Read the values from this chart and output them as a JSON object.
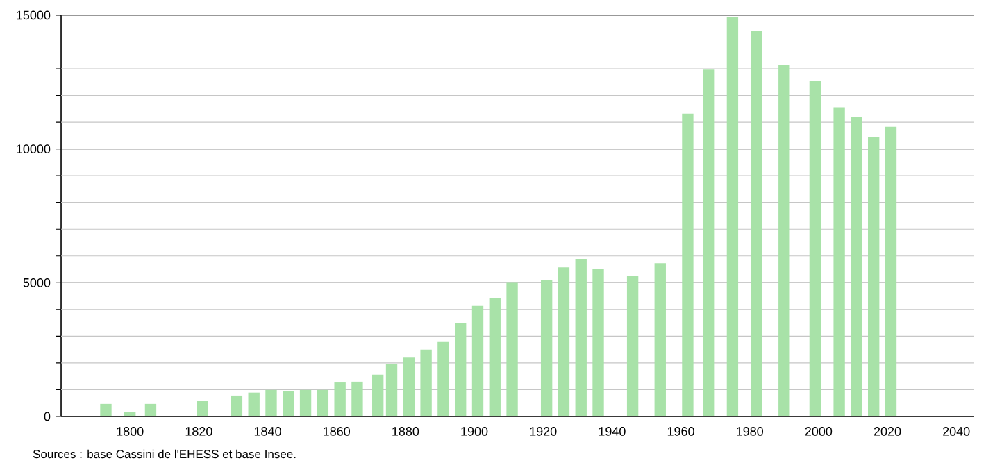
{
  "chart_data": {
    "type": "bar",
    "color": "#a8e2a8",
    "x": [
      1793,
      1800,
      1806,
      1821,
      1831,
      1836,
      1841,
      1846,
      1851,
      1856,
      1861,
      1866,
      1872,
      1876,
      1881,
      1886,
      1891,
      1896,
      1901,
      1906,
      1911,
      1921,
      1926,
      1931,
      1936,
      1946,
      1954,
      1962,
      1968,
      1975,
      1982,
      1990,
      1999,
      2006,
      2011,
      2016,
      2021
    ],
    "values": [
      470,
      170,
      470,
      570,
      780,
      890,
      990,
      950,
      990,
      990,
      1270,
      1300,
      1560,
      1960,
      2200,
      2500,
      2810,
      3500,
      4130,
      4410,
      5020,
      5100,
      5570,
      5890,
      5520,
      5260,
      5730,
      11320,
      12970,
      14930,
      14430,
      13160,
      12550,
      11560,
      11200,
      10430,
      10830
    ],
    "xlim": [
      1780,
      2045
    ],
    "xticks": [
      1800,
      1820,
      1840,
      1860,
      1880,
      1900,
      1920,
      1940,
      1960,
      1980,
      2000,
      2020,
      2040
    ],
    "ylim": [
      0,
      15000
    ],
    "yticks": [
      0,
      {
        "value": 1000,
        "label": null
      },
      {
        "value": 2000,
        "label": null
      },
      {
        "value": 3000,
        "label": null
      },
      {
        "value": 4000,
        "label": null
      },
      5000,
      {
        "value": 6000,
        "label": null
      },
      {
        "value": 7000,
        "label": null
      },
      {
        "value": 8000,
        "label": null
      },
      {
        "value": 9000,
        "label": null
      },
      10000,
      {
        "value": 11000,
        "label": null
      },
      {
        "value": 12000,
        "label": null
      },
      {
        "value": 13000,
        "label": null
      },
      {
        "value": 14000,
        "label": null
      },
      15000
    ],
    "grid": "y",
    "annotations": [
      "Sources : base Cassini de l'EHESS et base Insee."
    ]
  }
}
